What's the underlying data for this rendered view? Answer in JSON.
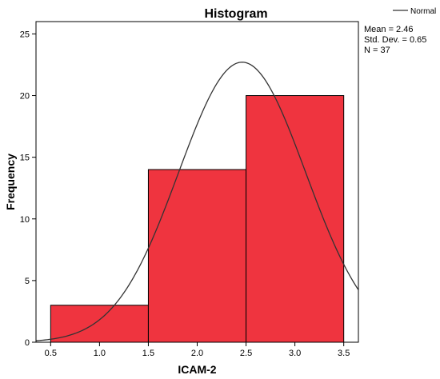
{
  "chart_data": {
    "type": "histogram",
    "title": "Histogram",
    "xlabel": "ICAM-2",
    "ylabel": "Frequency",
    "bins": [
      {
        "start": 0.5,
        "end": 1.5,
        "value": 3
      },
      {
        "start": 1.5,
        "end": 2.5,
        "value": 14
      },
      {
        "start": 2.5,
        "end": 3.5,
        "value": 20
      }
    ],
    "xlim": [
      0.35,
      3.65
    ],
    "ylim": [
      0,
      26
    ],
    "xticks": [
      0.5,
      1.0,
      1.5,
      2.0,
      2.5,
      3.0,
      3.5
    ],
    "xtick_labels": [
      "0.5",
      "1.0",
      "1.5",
      "2.0",
      "2.5",
      "3.0",
      "3.5"
    ],
    "yticks": [
      0,
      5,
      10,
      15,
      20,
      25
    ],
    "ytick_labels": [
      "0",
      "5",
      "10",
      "15",
      "20",
      "25"
    ],
    "bar_color": "#ef343f",
    "bar_edge_color": "#000000",
    "normal_curve": {
      "mean": 2.46,
      "sd": 0.65,
      "n": 37,
      "bin_width": 1.0,
      "color": "#333333"
    },
    "legend": {
      "label": "Normal",
      "position": "top-right"
    },
    "stats": [
      "Mean = 2.46",
      "Std. Dev. = 0.65",
      "N = 37"
    ],
    "grid": false
  }
}
